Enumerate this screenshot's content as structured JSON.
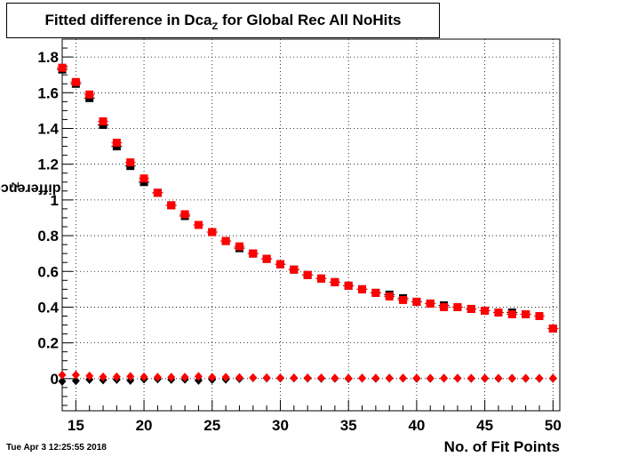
{
  "chart_data": {
    "type": "scatter",
    "title_main": "Fitted difference in Dca",
    "title_sub": "Z",
    "title_rest": " for Global Rec All NoHits",
    "ylabel_main": "difference in Dca",
    "ylabel_sub": "Z",
    "xlabel": "No. of Fit Points",
    "timestamp": "Tue Apr  3 12:25:55 2018",
    "xlim": [
      14,
      50.5
    ],
    "ylim": [
      -0.18,
      1.9
    ],
    "xticks": [
      15,
      20,
      25,
      30,
      35,
      40,
      45,
      50
    ],
    "yticks": [
      0,
      0.2,
      0.4,
      0.6,
      0.8,
      1,
      1.2,
      1.4,
      1.6,
      1.8
    ],
    "ytick_labels": [
      "0",
      "0.2",
      "0.4",
      "0.6",
      "0.8",
      "1",
      "1.2",
      "1.4",
      "1.6",
      "1.8"
    ],
    "grid": true,
    "x": [
      14,
      15,
      16,
      17,
      18,
      19,
      20,
      21,
      22,
      23,
      24,
      25,
      26,
      27,
      28,
      29,
      30,
      31,
      32,
      33,
      34,
      35,
      36,
      37,
      38,
      39,
      40,
      41,
      42,
      43,
      44,
      45,
      46,
      47,
      48,
      49,
      50
    ],
    "series": [
      {
        "color": "#000000",
        "marker": "square",
        "values": [
          1.73,
          1.65,
          1.57,
          1.42,
          1.3,
          1.19,
          1.1,
          1.04,
          0.97,
          0.91,
          0.86,
          0.82,
          0.77,
          0.73,
          0.7,
          0.67,
          0.64,
          0.61,
          0.58,
          0.56,
          0.54,
          0.52,
          0.5,
          0.48,
          0.47,
          0.45,
          0.43,
          0.42,
          0.41,
          0.4,
          0.39,
          0.38,
          0.37,
          0.37,
          0.36,
          0.35,
          0.28
        ]
      },
      {
        "color": "#ff0000",
        "marker": "square",
        "values": [
          1.74,
          1.66,
          1.59,
          1.44,
          1.32,
          1.21,
          1.12,
          1.04,
          0.97,
          0.92,
          0.86,
          0.82,
          0.77,
          0.74,
          0.7,
          0.67,
          0.64,
          0.61,
          0.58,
          0.56,
          0.54,
          0.52,
          0.5,
          0.48,
          0.46,
          0.44,
          0.43,
          0.42,
          0.4,
          0.4,
          0.39,
          0.38,
          0.37,
          0.36,
          0.36,
          0.35,
          0.28
        ]
      },
      {
        "color": "#000000",
        "marker": "diamond",
        "values": [
          -0.015,
          -0.012,
          -0.005,
          -0.008,
          -0.005,
          -0.01,
          -0.003,
          -0.002,
          -0.005,
          -0.004,
          -0.01,
          -0.005,
          -0.004,
          0.0,
          0.005,
          0.003,
          0.002,
          0.003,
          0.002,
          0.001,
          0.001,
          0.0,
          0.002,
          0.001,
          0.002,
          0.002,
          0.001,
          0.001,
          0.002,
          0.002,
          0.001,
          0.001,
          0.001,
          0.001,
          0.001,
          0.001,
          0.001
        ]
      },
      {
        "color": "#ff0000",
        "marker": "diamond",
        "values": [
          0.02,
          0.02,
          0.015,
          0.01,
          0.01,
          0.012,
          0.01,
          0.008,
          0.008,
          0.008,
          0.012,
          0.008,
          0.008,
          0.006,
          0.005,
          0.005,
          0.004,
          0.004,
          0.004,
          0.004,
          0.003,
          0.002,
          0.003,
          0.003,
          0.003,
          0.003,
          0.003,
          0.002,
          0.002,
          0.002,
          0.002,
          0.002,
          0.002,
          0.002,
          0.002,
          0.002,
          0.002
        ]
      }
    ]
  }
}
